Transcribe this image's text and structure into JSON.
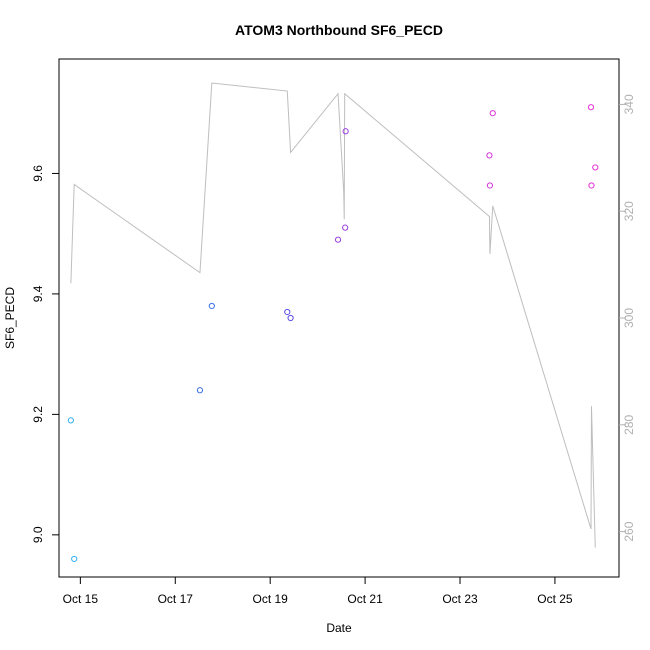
{
  "chart_data": {
    "type": "scatter",
    "title": "ATOM3 Northbound SF6_PECD",
    "xlabel": "Date",
    "ylabel": "SF6_PECD",
    "x_ticks": [
      "Oct 15",
      "Oct 17",
      "Oct 19",
      "Oct 21",
      "Oct 23",
      "Oct 25"
    ],
    "x_tick_values": [
      15,
      17,
      19,
      21,
      23,
      25
    ],
    "xlim": [
      14.55,
      26.35
    ],
    "y_ticks": [
      "9.0",
      "9.2",
      "9.4",
      "9.6"
    ],
    "y_tick_values": [
      9.0,
      9.2,
      9.4,
      9.6
    ],
    "ylim": [
      8.93,
      9.79
    ],
    "y2_ticks": [
      "260",
      "280",
      "300",
      "320",
      "340"
    ],
    "y2_tick_values": [
      260,
      280,
      300,
      320,
      340
    ],
    "y2lim": [
      251.5,
      348.5
    ],
    "grid": false,
    "legend": "none",
    "series": [
      {
        "type": "scatter",
        "marker": "open-circle",
        "points": [
          {
            "x": 14.8,
            "y": 9.19,
            "color": "#33b0f0"
          },
          {
            "x": 14.87,
            "y": 8.96,
            "color": "#33b0f0"
          },
          {
            "x": 17.52,
            "y": 9.24,
            "color": "#3a6ee8"
          },
          {
            "x": 17.77,
            "y": 9.38,
            "color": "#3a6ee8"
          },
          {
            "x": 19.36,
            "y": 9.37,
            "color": "#5a4ee6"
          },
          {
            "x": 19.43,
            "y": 9.36,
            "color": "#5a4ee6"
          },
          {
            "x": 20.43,
            "y": 9.49,
            "color": "#9a3ee0"
          },
          {
            "x": 20.58,
            "y": 9.51,
            "color": "#9a3ee0"
          },
          {
            "x": 20.59,
            "y": 9.67,
            "color": "#9a3ee0"
          },
          {
            "x": 23.62,
            "y": 9.63,
            "color": "#d535dc"
          },
          {
            "x": 23.63,
            "y": 9.58,
            "color": "#d535dc"
          },
          {
            "x": 23.69,
            "y": 9.7,
            "color": "#d535dc"
          },
          {
            "x": 25.76,
            "y": 9.71,
            "color": "#e332d6"
          },
          {
            "x": 25.77,
            "y": 9.58,
            "color": "#e332d6"
          },
          {
            "x": 25.85,
            "y": 9.61,
            "color": "#e332d6"
          }
        ]
      },
      {
        "type": "line",
        "axis": "right",
        "color": "#bebebe",
        "points": [
          {
            "x": 14.8,
            "y": 306.5
          },
          {
            "x": 14.87,
            "y": 325.0
          },
          {
            "x": 17.52,
            "y": 308.5
          },
          {
            "x": 17.77,
            "y": 344.0
          },
          {
            "x": 19.36,
            "y": 342.5
          },
          {
            "x": 19.43,
            "y": 331.0
          },
          {
            "x": 20.43,
            "y": 342.0
          },
          {
            "x": 20.55,
            "y": 323.5
          },
          {
            "x": 20.56,
            "y": 318.5
          },
          {
            "x": 20.57,
            "y": 342.0
          },
          {
            "x": 23.62,
            "y": 319.0
          },
          {
            "x": 23.63,
            "y": 312.0
          },
          {
            "x": 23.69,
            "y": 321.0
          },
          {
            "x": 25.76,
            "y": 260.5
          },
          {
            "x": 25.77,
            "y": 283.5
          },
          {
            "x": 25.85,
            "y": 257.0
          }
        ]
      }
    ]
  }
}
